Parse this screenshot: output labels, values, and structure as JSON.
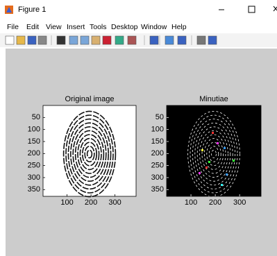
{
  "window": {
    "title": "Figure 1"
  },
  "menu": [
    "File",
    "Edit",
    "View",
    "Insert",
    "Tools",
    "Desktop",
    "Window",
    "Help"
  ],
  "axes": [
    {
      "title": "Original image",
      "xlim": [
        0,
        388
      ],
      "ylim": [
        0,
        378
      ],
      "xticks": [
        100,
        200,
        300
      ],
      "yticks": [
        50,
        100,
        150,
        200,
        250,
        300,
        350
      ]
    },
    {
      "title": "Minutiae",
      "xlim": [
        0,
        388
      ],
      "ylim": [
        0,
        378
      ],
      "xticks": [
        100,
        200,
        300
      ],
      "yticks": [
        50,
        100,
        150,
        200,
        250,
        300,
        350
      ]
    }
  ]
}
